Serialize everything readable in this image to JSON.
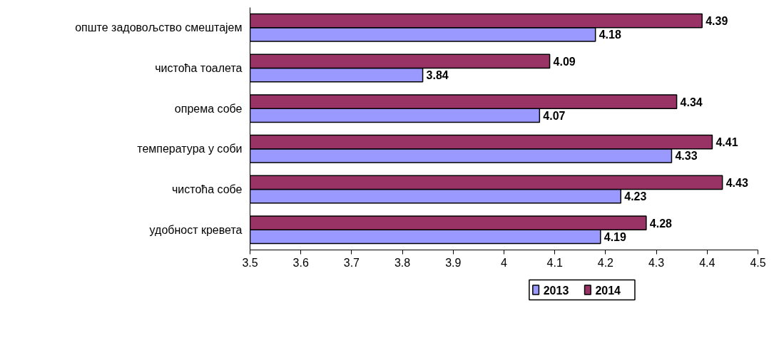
{
  "chart_data": {
    "type": "bar",
    "orientation": "horizontal",
    "categories": [
      "опште задовољство смештајем",
      "чистоћа тоалета",
      "опрема собе",
      "температура у соби",
      "чистоћа собе",
      "удобност кревета"
    ],
    "series": [
      {
        "name": "2013",
        "color": "#9999ff",
        "values": [
          4.18,
          3.84,
          4.07,
          4.33,
          4.23,
          4.19
        ]
      },
      {
        "name": "2014",
        "color": "#993366",
        "values": [
          4.39,
          4.09,
          4.34,
          4.41,
          4.43,
          4.28
        ]
      }
    ],
    "xlim": [
      3.5,
      4.5
    ],
    "xticks": [
      3.5,
      3.6,
      3.7,
      3.8,
      3.9,
      4,
      4.1,
      4.2,
      4.3,
      4.4,
      4.5
    ],
    "data_labels": true,
    "grid": false,
    "legend": "bottom"
  }
}
